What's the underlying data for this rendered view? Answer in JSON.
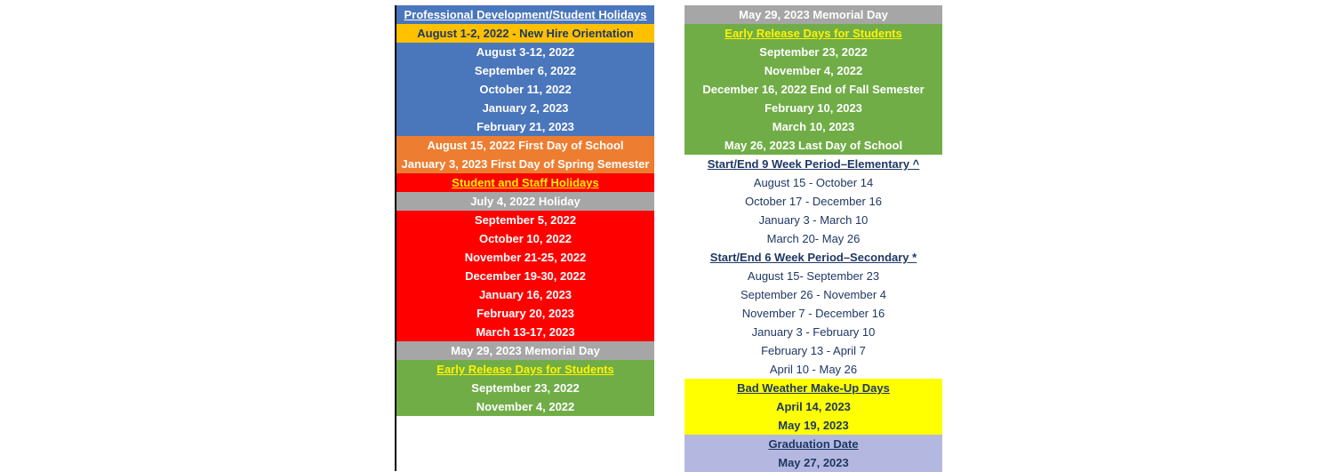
{
  "left": {
    "pdHeader": "Professional Development/Student Holidays",
    "newHire": "August 1-2, 2022 -  New Hire Orientation",
    "pdDates": [
      "August 3-12, 2022",
      "September 6, 2022",
      "October 11, 2022",
      "January 2, 2023",
      "February 21, 2023"
    ],
    "firstDay": "August 15, 2022  First Day of School",
    "springStart": "January 3, 2023  First Day of Spring Semester",
    "holHeader": "Student and Staff Holidays",
    "july4": "July 4, 2022 Holiday",
    "holDates": [
      "September 5, 2022",
      "October 10, 2022",
      "November 21-25, 2022",
      "December 19-30, 2022",
      "January 16, 2023",
      "February 20, 2023",
      "March 13-17, 2023"
    ],
    "memorial": "May 29, 2023 Memorial Day",
    "earlyHeader": "Early Release Days for Students",
    "earlyDates": [
      "September 23, 2022",
      "November 4, 2022"
    ]
  },
  "right": {
    "memorial": "May 29, 2023 Memorial Day",
    "earlyHeader": "Early Release Days for Students",
    "earlyDates": [
      "September 23, 2022",
      "November 4, 2022",
      "December 16, 2022 End of Fall Semester",
      "February 10, 2023",
      "March 10, 2023",
      "May 26, 2023 Last Day of School"
    ],
    "nineWeekHeader": "Start/End 9 Week Period–Elementary ^",
    "nineWeek": [
      "August 15 - October 14",
      "October 17 - December 16",
      "January 3 - March 10",
      "March 20- May 26"
    ],
    "sixWeekHeader": "Start/End 6 Week Period–Secondary *",
    "sixWeek": [
      "August 15- September 23",
      "September 26 - November 4",
      "November 7 - December 16",
      "January 3 - February 10",
      "February 13 - April 7",
      "April 10 - May 26"
    ],
    "badWeatherHeader": "Bad Weather Make-Up Days",
    "badWeather": [
      "April 14, 2023",
      "May 19, 2023"
    ],
    "gradHeader": "Graduation Date",
    "gradDate": "May 27, 2023"
  }
}
